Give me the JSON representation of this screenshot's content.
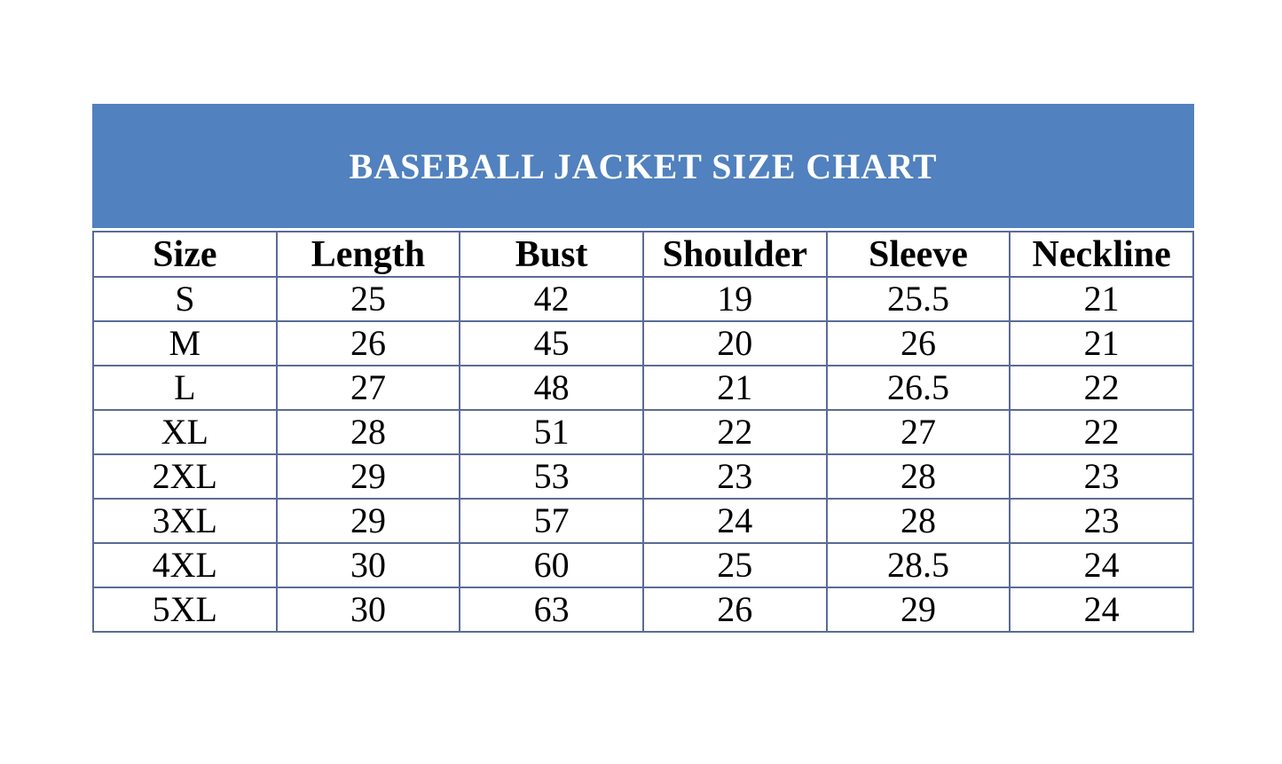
{
  "colors": {
    "banner_bg": "#5181be",
    "banner_text": "#ffffff",
    "border_color": "#5b6b94",
    "cell_text": "#000000",
    "page_bg": "#ffffff"
  },
  "banner": {
    "title": "BASEBALL JACKET SIZE CHART"
  },
  "chart_data": {
    "type": "table",
    "title": "BASEBALL JACKET SIZE CHART",
    "columns": [
      "Size",
      "Length",
      "Bust",
      "Shoulder",
      "Sleeve",
      "Neckline"
    ],
    "rows": [
      [
        "S",
        "25",
        "42",
        "19",
        "25.5",
        "21"
      ],
      [
        "M",
        "26",
        "45",
        "20",
        "26",
        "21"
      ],
      [
        "L",
        "27",
        "48",
        "21",
        "26.5",
        "22"
      ],
      [
        "XL",
        "28",
        "51",
        "22",
        "27",
        "22"
      ],
      [
        "2XL",
        "29",
        "53",
        "23",
        "28",
        "23"
      ],
      [
        "3XL",
        "29",
        "57",
        "24",
        "28",
        "23"
      ],
      [
        "4XL",
        "30",
        "60",
        "25",
        "28.5",
        "24"
      ],
      [
        "5XL",
        "30",
        "63",
        "26",
        "29",
        "24"
      ]
    ]
  }
}
